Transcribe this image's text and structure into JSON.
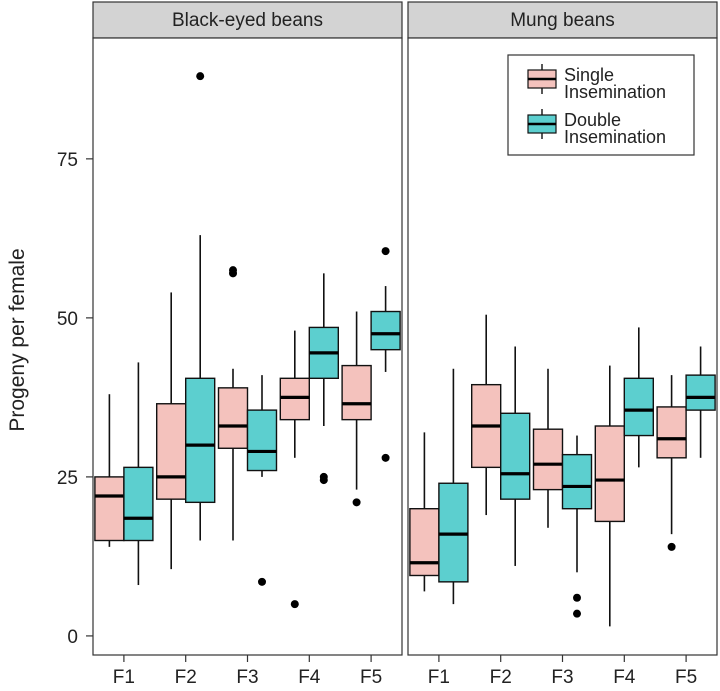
{
  "chart_data": {
    "type": "boxplot",
    "ylabel": "Progeny per female",
    "categories": [
      "F1",
      "F2",
      "F3",
      "F4",
      "F5"
    ],
    "yticks": [
      0,
      25,
      50,
      75
    ],
    "ylim": [
      -3,
      94
    ],
    "grid": false,
    "legend": {
      "placement": "top-right",
      "entries": [
        {
          "line1": "Single",
          "line2": "Insemination"
        },
        {
          "line1": "Double",
          "line2": "Insemination"
        }
      ]
    },
    "colors": {
      "single": "#f4c2bd",
      "double": "#5ccfcf",
      "strip": "#d3d3d3"
    },
    "panels": [
      {
        "title": "Black-eyed beans",
        "series": [
          {
            "key": "single",
            "boxes": [
              {
                "min": 14,
                "q1": 15,
                "median": 22,
                "q3": 25,
                "max": 38,
                "outliers": []
              },
              {
                "min": 10.5,
                "q1": 21.5,
                "median": 25,
                "q3": 36.5,
                "max": 54,
                "outliers": []
              },
              {
                "min": 15,
                "q1": 29.5,
                "median": 33,
                "q3": 39,
                "max": 42,
                "outliers": [
                  57.5,
                  57
                ]
              },
              {
                "min": 28,
                "q1": 34,
                "median": 37.5,
                "q3": 40.5,
                "max": 48,
                "outliers": [
                  5
                ]
              },
              {
                "min": 23,
                "q1": 34,
                "median": 36.5,
                "q3": 42.5,
                "max": 51,
                "outliers": [
                  21
                ]
              }
            ]
          },
          {
            "key": "double",
            "boxes": [
              {
                "min": 8,
                "q1": 15,
                "median": 18.5,
                "q3": 26.5,
                "max": 43,
                "outliers": []
              },
              {
                "min": 15,
                "q1": 21,
                "median": 30,
                "q3": 40.5,
                "max": 63,
                "outliers": [
                  88
                ]
              },
              {
                "min": 25,
                "q1": 26,
                "median": 29,
                "q3": 35.5,
                "max": 41,
                "outliers": [
                  8.5
                ]
              },
              {
                "min": 33,
                "q1": 40.5,
                "median": 44.5,
                "q3": 48.5,
                "max": 57,
                "outliers": [
                  25,
                  24.5
                ]
              },
              {
                "min": 41.5,
                "q1": 45,
                "median": 47.5,
                "q3": 51,
                "max": 55,
                "outliers": [
                  60.5,
                  28
                ]
              }
            ]
          }
        ]
      },
      {
        "title": "Mung beans",
        "series": [
          {
            "key": "single",
            "boxes": [
              {
                "min": 7,
                "q1": 9.5,
                "median": 11.5,
                "q3": 20,
                "max": 32,
                "outliers": []
              },
              {
                "min": 19,
                "q1": 26.5,
                "median": 33,
                "q3": 39.5,
                "max": 50.5,
                "outliers": []
              },
              {
                "min": 17,
                "q1": 23,
                "median": 27,
                "q3": 32.5,
                "max": 42,
                "outliers": []
              },
              {
                "min": 1.5,
                "q1": 18,
                "median": 24.5,
                "q3": 33,
                "max": 42.5,
                "outliers": []
              },
              {
                "min": 16,
                "q1": 28,
                "median": 31,
                "q3": 36,
                "max": 41,
                "outliers": [
                  14
                ]
              }
            ]
          },
          {
            "key": "double",
            "boxes": [
              {
                "min": 5,
                "q1": 8.5,
                "median": 16,
                "q3": 24,
                "max": 42,
                "outliers": []
              },
              {
                "min": 11,
                "q1": 21.5,
                "median": 25.5,
                "q3": 35,
                "max": 45.5,
                "outliers": []
              },
              {
                "min": 10,
                "q1": 20,
                "median": 23.5,
                "q3": 28.5,
                "max": 31.5,
                "outliers": [
                  6,
                  3.5
                ]
              },
              {
                "min": 26.5,
                "q1": 31.5,
                "median": 35.5,
                "q3": 40.5,
                "max": 48.5,
                "outliers": []
              },
              {
                "min": 28,
                "q1": 35.5,
                "median": 37.5,
                "q3": 41,
                "max": 45.5,
                "outliers": []
              }
            ]
          }
        ]
      }
    ]
  }
}
